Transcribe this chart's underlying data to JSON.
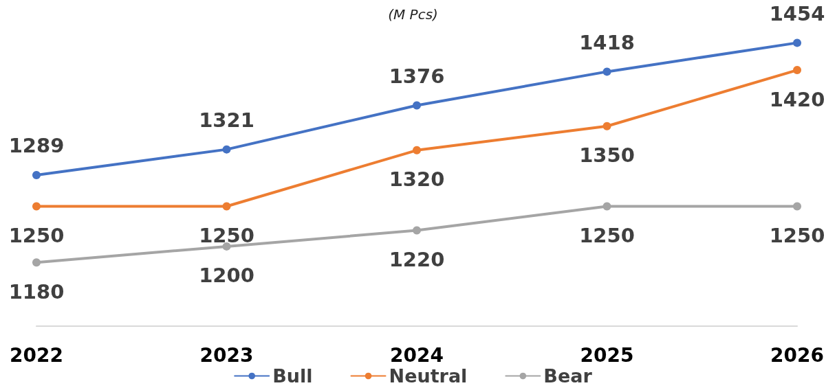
{
  "chart_data": {
    "type": "line",
    "subtitle": "(M Pcs)",
    "categories": [
      "2022",
      "2023",
      "2024",
      "2025",
      "2026"
    ],
    "series": [
      {
        "name": "Bull",
        "color": "#4472c4",
        "values": [
          1289,
          1321,
          1376,
          1418,
          1454
        ]
      },
      {
        "name": "Neutral",
        "color": "#ed7d31",
        "values": [
          1250,
          1250,
          1320,
          1350,
          1420
        ]
      },
      {
        "name": "Bear",
        "color": "#a5a5a5",
        "values": [
          1180,
          1200,
          1220,
          1250,
          1250
        ]
      }
    ],
    "data_labels": true,
    "grid": false,
    "legend": "bottom",
    "marker": "circle",
    "line_style": "solid",
    "tick_labels": "x"
  }
}
